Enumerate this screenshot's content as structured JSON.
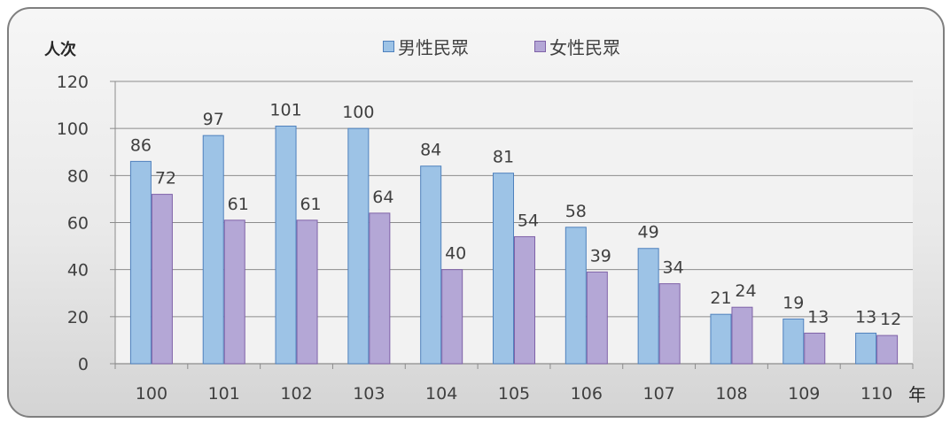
{
  "chart_data": {
    "type": "bar",
    "ylabel": "人次",
    "xlabel": "年",
    "categories": [
      "100",
      "101",
      "102",
      "103",
      "104",
      "105",
      "106",
      "107",
      "108",
      "109",
      "110"
    ],
    "series": [
      {
        "name": "男性民眾",
        "color": "#9dc3e6",
        "stroke": "#4f81bd",
        "values": [
          86,
          97,
          101,
          100,
          84,
          81,
          58,
          49,
          21,
          19,
          13
        ]
      },
      {
        "name": "女性民眾",
        "color": "#b4a7d6",
        "stroke": "#7f62a8",
        "values": [
          72,
          61,
          61,
          64,
          40,
          54,
          39,
          34,
          24,
          13,
          12
        ]
      }
    ],
    "ylim": [
      0,
      120
    ],
    "yticks": [
      0,
      20,
      40,
      60,
      80,
      100,
      120
    ],
    "grid": true,
    "legend_position": "top-center"
  }
}
